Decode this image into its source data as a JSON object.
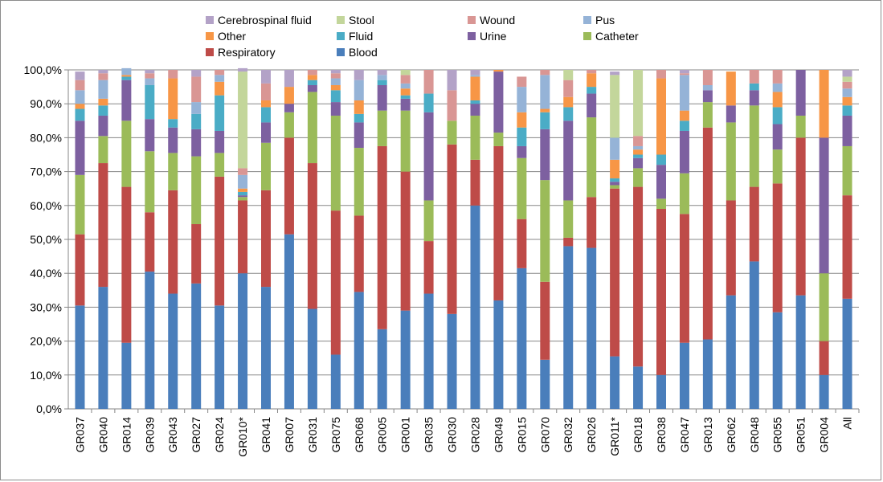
{
  "chart_data": {
    "type": "bar",
    "stacked": true,
    "percent": true,
    "title": "",
    "xlabel": "",
    "ylabel": "",
    "ylim": [
      0,
      100
    ],
    "yticks": [
      "0,0%",
      "10,0%",
      "20,0%",
      "30,0%",
      "40,0%",
      "50,0%",
      "60,0%",
      "70,0%",
      "80,0%",
      "90,0%",
      "100,0%"
    ],
    "grid": true,
    "legend_position": "top",
    "categories": [
      "GR037",
      "GR040",
      "GR014",
      "GR039",
      "GR043",
      "GR027",
      "GR024",
      "GR010*",
      "GR041",
      "GR007",
      "GR031",
      "GR075",
      "GR068",
      "GR005",
      "GR001",
      "GR035",
      "GR030",
      "GR028",
      "GR049",
      "GR015",
      "GR070",
      "GR032",
      "GR026",
      "GR011*",
      "GR018",
      "GR038",
      "GR047",
      "GR013",
      "GR062",
      "GR048",
      "GR055",
      "GR051",
      "GR004",
      "All"
    ],
    "legend_order": [
      "Cerebrospinal fluid",
      "Stool",
      "Wound",
      "Pus",
      "Other",
      "Fluid",
      "Urine",
      "Catheter",
      "Respiratory",
      "Blood"
    ],
    "series": [
      {
        "name": "Blood",
        "color": "#4a7ebb",
        "values": [
          30.5,
          36,
          19.5,
          40.5,
          34,
          37,
          30.5,
          40,
          36,
          51.5,
          29.5,
          16,
          34.5,
          23.5,
          29,
          34,
          28,
          60,
          32,
          41.5,
          14.5,
          48,
          47.5,
          15.5,
          12.5,
          10,
          19.5,
          20.5,
          33.5,
          43.5,
          28.5,
          33.5,
          10,
          32.5
        ]
      },
      {
        "name": "Respiratory",
        "color": "#be4b48",
        "values": [
          21,
          36.5,
          46,
          17.5,
          30.5,
          17.5,
          38,
          21.5,
          28.5,
          28.5,
          43,
          42.5,
          22.5,
          54,
          41,
          15.5,
          50,
          13.5,
          45.5,
          14.5,
          23,
          2.5,
          15,
          49.5,
          53,
          49,
          38,
          62.5,
          28,
          22,
          38,
          46.5,
          10,
          30.5
        ]
      },
      {
        "name": "Catheter",
        "color": "#9bbb59",
        "values": [
          17.5,
          8,
          19.5,
          18,
          11,
          20,
          7,
          1,
          14,
          7.5,
          21,
          28,
          20,
          10.5,
          18,
          12,
          7,
          13,
          4,
          18,
          30,
          11,
          23.5,
          1,
          5.5,
          3,
          12,
          7.5,
          23,
          24,
          10,
          6.5,
          20,
          14.5
        ]
      },
      {
        "name": "Urine",
        "color": "#7d60a0",
        "values": [
          16,
          6,
          12,
          9.5,
          7.5,
          8,
          6.5,
          0.5,
          6,
          2.5,
          2,
          4,
          7.5,
          7.5,
          3.5,
          26,
          0,
          3.5,
          18,
          3.5,
          15,
          23.5,
          7,
          1,
          3,
          10,
          12.5,
          3.5,
          5,
          4.5,
          7.5,
          13.5,
          40,
          9
        ]
      },
      {
        "name": "Fluid",
        "color": "#4aacc6",
        "values": [
          3.5,
          3,
          1,
          10,
          2.5,
          4.5,
          10.5,
          1,
          4.5,
          0,
          1.5,
          3.5,
          2.5,
          1.5,
          1,
          5.5,
          0,
          1,
          0,
          5.5,
          5,
          4,
          2,
          1,
          1,
          3,
          3,
          0,
          0,
          2,
          5,
          0,
          0,
          3
        ]
      },
      {
        "name": "Other",
        "color": "#f79646",
        "values": [
          1.5,
          2,
          0.5,
          0,
          12,
          0,
          4,
          1,
          2,
          5,
          1.5,
          1.5,
          4,
          0,
          2,
          0,
          0,
          7,
          0.5,
          4.5,
          1,
          3,
          4,
          5.5,
          1.5,
          22.5,
          3,
          0,
          10,
          0,
          4.5,
          0,
          20,
          2.5
        ]
      },
      {
        "name": "Pus",
        "color": "#95b3d7",
        "values": [
          4,
          5.5,
          2,
          2,
          0,
          3.5,
          2,
          4,
          0,
          0,
          0,
          2,
          6,
          1.5,
          1.5,
          0,
          0,
          0.5,
          0,
          7.5,
          10,
          0,
          0,
          6.5,
          1,
          0,
          10.5,
          1.5,
          0,
          0,
          2.5,
          0,
          0,
          2.5
        ]
      },
      {
        "name": "Wound",
        "color": "#d99694",
        "values": [
          3,
          2,
          0,
          1.5,
          2.5,
          7.5,
          1.5,
          2,
          5,
          0,
          1.5,
          1.5,
          0,
          0,
          2.5,
          7,
          9,
          0,
          0,
          3,
          1.5,
          5,
          1,
          0,
          3,
          2.5,
          0.5,
          4.5,
          0,
          4,
          4,
          0,
          0,
          2
        ]
      },
      {
        "name": "Stool",
        "color": "#c3d69b",
        "values": [
          0,
          0,
          0,
          0,
          0,
          0,
          0,
          28.5,
          0,
          0,
          0,
          0,
          0,
          0,
          1.5,
          0,
          0,
          0,
          0,
          0,
          0,
          3,
          0,
          18.5,
          19.5,
          0,
          0,
          0,
          0,
          0,
          0,
          0,
          0,
          1.5
        ]
      },
      {
        "name": "Cerebrospinal fluid",
        "color": "#b3a2c7",
        "values": [
          2.5,
          1,
          0,
          1,
          0,
          2,
          0,
          1,
          4,
          5,
          0,
          1,
          3,
          1.5,
          0,
          0,
          6,
          1.5,
          0,
          0,
          0,
          0,
          0,
          1,
          0,
          0,
          1,
          0,
          0,
          0,
          0,
          0,
          0,
          2
        ]
      }
    ]
  }
}
